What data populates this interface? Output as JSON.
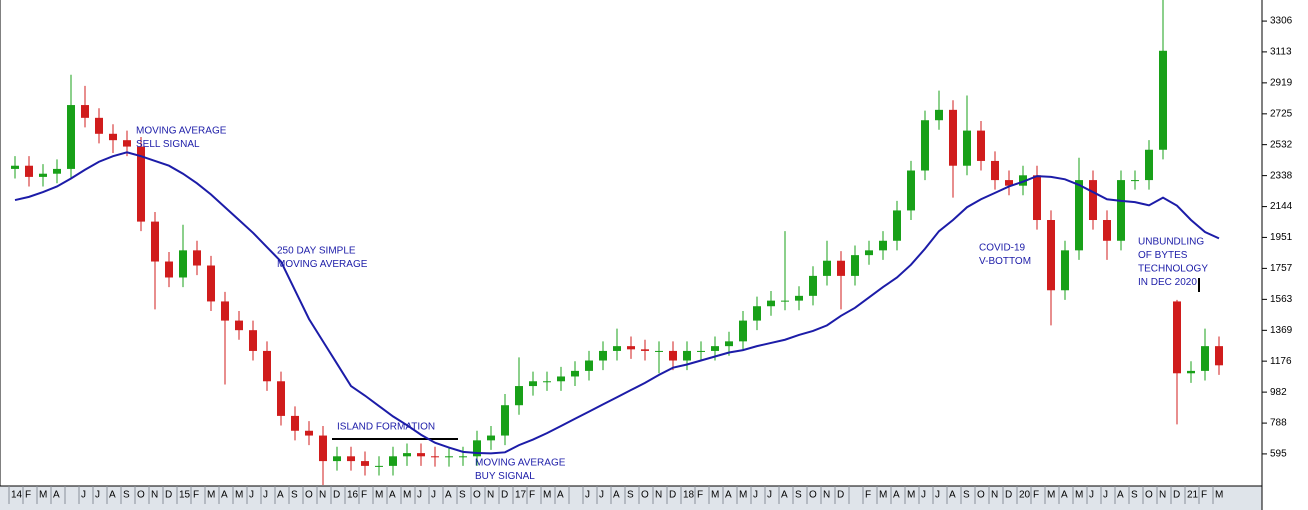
{
  "chart_data": {
    "type": "candlestick",
    "categories": [
      "14",
      "F",
      "M",
      "A",
      null,
      "J",
      "J",
      "A",
      "S",
      "O",
      "N",
      "D",
      "15",
      "F",
      "M",
      "A",
      "M",
      "J",
      "J",
      "A",
      "S",
      "O",
      "N",
      "D",
      "16",
      "F",
      "M",
      "A",
      "M",
      "J",
      "J",
      "A",
      "S",
      "O",
      "N",
      "D",
      "17",
      "F",
      "M",
      "A",
      null,
      "J",
      "J",
      "A",
      "S",
      "O",
      "N",
      "D",
      "18",
      "F",
      "M",
      "A",
      "M",
      "J",
      "J",
      "A",
      "S",
      "O",
      "N",
      "D",
      null,
      "F",
      "M",
      "A",
      "M",
      "J",
      "J",
      "A",
      "S",
      "O",
      "N",
      "D",
      "20",
      "F",
      "M",
      "A",
      "M",
      "J",
      "J",
      "A",
      "S",
      "O",
      "N",
      "D",
      "21",
      "F",
      "M"
    ],
    "open": [
      2380,
      2400,
      2330,
      2350,
      2380,
      2780,
      2700,
      2600,
      2560,
      2520,
      2050,
      1800,
      1700,
      1870,
      1775,
      1550,
      1430,
      1370,
      1240,
      1050,
      833,
      740,
      710,
      550,
      580,
      550,
      520,
      520,
      580,
      600,
      580,
      575,
      580,
      580,
      680,
      710,
      900,
      1020,
      1050,
      1050,
      1080,
      1115,
      1180,
      1240,
      1270,
      1250,
      1240,
      1240,
      1180,
      1240,
      1240,
      1270,
      1300,
      1430,
      1520,
      1555,
      1555,
      1585,
      1710,
      1805,
      1710,
      1840,
      1870,
      1930,
      2120,
      2370,
      2685,
      2750,
      2400,
      2620,
      2430,
      2310,
      2275,
      2340,
      2060,
      1620,
      1870,
      2310,
      2060,
      1930,
      2310,
      2310,
      2500,
      1550,
      1100,
      1115,
      1270
    ],
    "high": [
      2460,
      2460,
      2410,
      2440,
      2970,
      2900,
      2760,
      2660,
      2620,
      2580,
      2110,
      1860,
      2030,
      1930,
      1835,
      1610,
      1490,
      1430,
      1300,
      1110,
      893,
      800,
      770,
      640,
      640,
      610,
      580,
      640,
      660,
      660,
      640,
      640,
      640,
      740,
      770,
      970,
      1200,
      1110,
      1110,
      1140,
      1175,
      1240,
      1300,
      1380,
      1330,
      1310,
      1300,
      1300,
      1300,
      1300,
      1330,
      1360,
      1490,
      1580,
      1615,
      1990,
      1645,
      1770,
      1930,
      1865,
      1900,
      1930,
      1990,
      2180,
      2430,
      2745,
      2870,
      2810,
      2840,
      2680,
      2490,
      2370,
      2400,
      2400,
      2120,
      1930,
      2450,
      2370,
      2120,
      2370,
      2370,
      2560,
      3438,
      1560,
      1175,
      1380,
      1330
    ],
    "low": [
      2320,
      2270,
      2270,
      2290,
      2320,
      2640,
      2540,
      2480,
      2460,
      1990,
      1500,
      1640,
      1640,
      1715,
      1490,
      1030,
      1310,
      1180,
      990,
      773,
      680,
      650,
      400,
      490,
      490,
      460,
      460,
      460,
      520,
      520,
      515,
      515,
      520,
      520,
      620,
      650,
      840,
      960,
      990,
      990,
      1020,
      1055,
      1120,
      1180,
      1190,
      1180,
      1100,
      1120,
      1120,
      1180,
      1180,
      1210,
      1240,
      1370,
      1460,
      1495,
      1495,
      1525,
      1650,
      1500,
      1650,
      1780,
      1810,
      1870,
      2060,
      2310,
      2625,
      2200,
      2340,
      2370,
      2250,
      2215,
      2215,
      2000,
      1400,
      1560,
      1810,
      2000,
      1810,
      1870,
      2250,
      2250,
      2440,
      780,
      1040,
      1055,
      1090
    ],
    "close": [
      2400,
      2330,
      2350,
      2380,
      2780,
      2700,
      2600,
      2560,
      2520,
      2050,
      1800,
      1700,
      1870,
      1775,
      1550,
      1430,
      1370,
      1240,
      1050,
      833,
      740,
      710,
      550,
      580,
      550,
      520,
      520,
      580,
      600,
      580,
      575,
      580,
      580,
      680,
      710,
      900,
      1020,
      1050,
      1050,
      1080,
      1115,
      1180,
      1240,
      1270,
      1250,
      1240,
      1240,
      1180,
      1240,
      1240,
      1270,
      1300,
      1430,
      1520,
      1555,
      1555,
      1585,
      1710,
      1805,
      1710,
      1840,
      1870,
      1930,
      2120,
      2370,
      2685,
      2750,
      2400,
      2620,
      2430,
      2310,
      2275,
      2340,
      2060,
      1620,
      1870,
      2310,
      2060,
      1930,
      2310,
      2310,
      2500,
      3120,
      1100,
      1115,
      1270,
      1150
    ],
    "up_color": "#18a018",
    "down_color": "#d01c1c",
    "moving_average": {
      "color": "#1c1ca8",
      "values": [
        2185,
        2205,
        2235,
        2270,
        2320,
        2375,
        2425,
        2460,
        2484,
        2460,
        2430,
        2400,
        2350,
        2290,
        2220,
        2140,
        2060,
        1980,
        1890,
        1800,
        1620,
        1440,
        1300,
        1160,
        1020,
        960,
        895,
        830,
        775,
        715,
        665,
        635,
        608,
        601,
        598,
        605,
        650,
        685,
        725,
        770,
        815,
        860,
        905,
        950,
        995,
        1040,
        1090,
        1135,
        1155,
        1180,
        1205,
        1230,
        1245,
        1270,
        1290,
        1310,
        1340,
        1365,
        1400,
        1460,
        1510,
        1575,
        1640,
        1700,
        1780,
        1880,
        1990,
        2060,
        2140,
        2190,
        2230,
        2270,
        2300,
        2335,
        2330,
        2315,
        2280,
        2235,
        2190,
        2180,
        2172,
        2152,
        2200,
        2150,
        2060,
        1985,
        1945
      ]
    },
    "ylim": [
      394,
      3438
    ],
    "yticks": [
      595,
      788,
      982,
      1176,
      1369,
      1563,
      1757,
      1951,
      2144,
      2338,
      2532,
      2725,
      2919,
      3113,
      3306
    ],
    "annotations": [
      {
        "lines": [
          "MOVING AVERAGE",
          "SELL SIGNAL"
        ]
      },
      {
        "lines": [
          "250 DAY SIMPLE",
          "MOVING AVERAGE"
        ]
      },
      {
        "lines": [
          "ISLAND FORMATION"
        ]
      },
      {
        "lines": [
          "MOVING AVERAGE",
          "BUY SIGNAL"
        ]
      },
      {
        "lines": [
          "COVID-19",
          "V-BOTTOM"
        ]
      },
      {
        "lines": [
          "UNBUNDLING",
          "OF BYTES",
          "TECHNOLOGY",
          "IN DEC 2020"
        ]
      }
    ]
  }
}
